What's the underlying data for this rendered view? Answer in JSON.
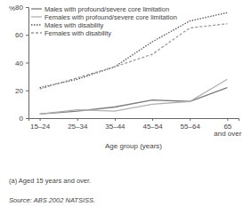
{
  "chart_data": {
    "type": "line",
    "ylabel": "%",
    "xlabel": "Age group (years)",
    "categories": [
      "15–24",
      "25–34",
      "35–44",
      "45–54",
      "55–64",
      "65 and over"
    ],
    "series": [
      {
        "name": "Males with profound/severe core limitation",
        "color": "#7a7a7a",
        "line_style": "solid",
        "values": [
          3,
          5,
          8,
          13,
          12,
          22
        ]
      },
      {
        "name": "Females with profound/severe core limitation",
        "color": "#b0b0b0",
        "line_style": "solid",
        "values": [
          3,
          6,
          5,
          10,
          12,
          28
        ]
      },
      {
        "name": "Males with disability",
        "color": "#555555",
        "line_style": "dotted",
        "values": [
          22,
          28,
          37,
          55,
          70,
          76
        ]
      },
      {
        "name": "Females with disability",
        "color": "#999999",
        "line_style": "dashed",
        "values": [
          21,
          29,
          37,
          46,
          65,
          68
        ]
      }
    ],
    "ylim": [
      0,
      80
    ],
    "yticks": [
      0,
      20,
      40,
      60,
      80
    ],
    "grid": false,
    "legend": "upper left",
    "notes": [
      "(a) Aged 15 years and over.",
      "Source: ABS 2002 NATSISS."
    ]
  }
}
